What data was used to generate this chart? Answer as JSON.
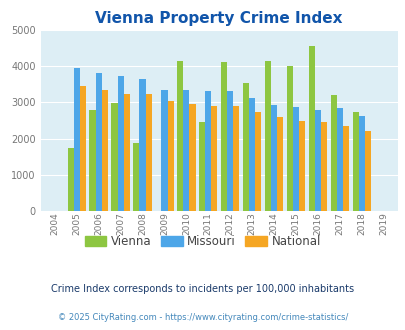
{
  "title": "Vienna Property Crime Index",
  "years": [
    2004,
    2005,
    2006,
    2007,
    2008,
    2009,
    2010,
    2011,
    2012,
    2013,
    2014,
    2015,
    2016,
    2017,
    2018,
    2019
  ],
  "vienna": [
    0,
    1750,
    2800,
    2970,
    1880,
    0,
    4130,
    2460,
    4100,
    3540,
    4140,
    4010,
    4540,
    3210,
    2720,
    0
  ],
  "missouri": [
    0,
    3940,
    3820,
    3730,
    3650,
    3330,
    3340,
    3310,
    3320,
    3130,
    2930,
    2870,
    2800,
    2840,
    2630,
    0
  ],
  "national": [
    0,
    3440,
    3330,
    3230,
    3230,
    3040,
    2940,
    2900,
    2890,
    2720,
    2600,
    2490,
    2460,
    2360,
    2200,
    0
  ],
  "vienna_color": "#8dc641",
  "missouri_color": "#4da6e8",
  "national_color": "#f5a623",
  "bg_color": "#ddeef5",
  "ylim": [
    0,
    5000
  ],
  "title_color": "#1155aa",
  "title_fontsize": 11,
  "legend_labels": [
    "Vienna",
    "Missouri",
    "National"
  ],
  "footnote1": "Crime Index corresponds to incidents per 100,000 inhabitants",
  "footnote2": "© 2025 CityRating.com - https://www.cityrating.com/crime-statistics/",
  "bar_width": 0.28,
  "grid_color": "#ffffff",
  "tick_color": "#777777",
  "footnote1_color": "#1a3a6a",
  "footnote2_color": "#4488bb"
}
